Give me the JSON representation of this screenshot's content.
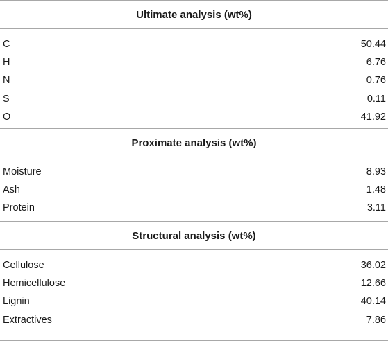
{
  "table": {
    "sections": [
      {
        "title": "Ultimate analysis (wt%)",
        "rows": [
          {
            "label": "C",
            "value": "50.44"
          },
          {
            "label": "H",
            "value": "6.76"
          },
          {
            "label": "N",
            "value": "0.76"
          },
          {
            "label": "S",
            "value": "0.11"
          },
          {
            "label": "O",
            "value": "41.92"
          }
        ]
      },
      {
        "title": "Proximate analysis (wt%)",
        "rows": [
          {
            "label": "Moisture",
            "value": "8.93"
          },
          {
            "label": "Ash",
            "value": "1.48"
          },
          {
            "label": "Protein",
            "value": "3.11"
          }
        ]
      },
      {
        "title": "Structural analysis (wt%)",
        "rows": [
          {
            "label": "Cellulose",
            "value": "36.02"
          },
          {
            "label": "Hemicellulose",
            "value": "12.66"
          },
          {
            "label": "Lignin",
            "value": "40.14"
          },
          {
            "label": "Extractives",
            "value": "7.86"
          }
        ]
      }
    ]
  }
}
